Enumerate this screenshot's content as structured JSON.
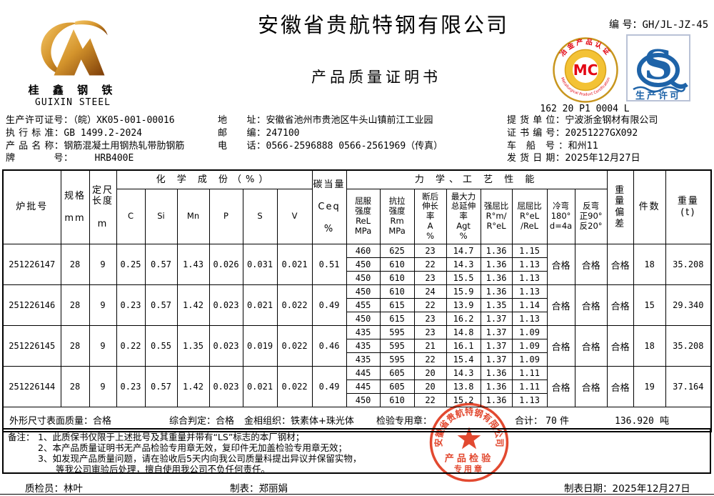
{
  "header": {
    "company": "安徽省贵航特钢有限公司",
    "doc_title": "产品质量证明书",
    "doc_no_label": "编 号：",
    "doc_no": "GH/JL-JZ-45",
    "logo_cn": "桂 鑫 钢 铁",
    "logo_en": "GUIXIN STEEL",
    "mc_letters": "MC",
    "mc_arc_top": "冶金产品认证",
    "mc_arc_bottom": "Metallurgical Product Certification",
    "mc_code": "162 20 P1 0004 L",
    "qs_letter": "S",
    "qs_caption": "生产许可"
  },
  "colors": {
    "stamp_red": "#e0391e",
    "mc_red": "#e30613",
    "mc_gold": "#d9a21a",
    "qs_blue": "#1e63a8"
  },
  "info": {
    "license_label": "生产许可证号：",
    "license_value": "（皖）XK05-001-00016",
    "standard_label": "执 行 标 准：",
    "standard_value": "GB 1499.2-2024",
    "product_label": "产 品 名 称：",
    "product_value": "钢筋混凝土用钢热轧带肋钢筋",
    "grade_label": "牌　　　　号：",
    "grade_value": "HRB400E",
    "address_label": "地　　址：",
    "address_value": "安徽省池州市贵池区牛头山镇前江工业园",
    "zip_label": "邮　　编：",
    "zip_value": "247100",
    "phone_label": "电　　话：",
    "phone_value": "0566-2596888  0566-2561969（传真）",
    "consignee_label": "提 货 单 位：",
    "consignee_value": "宁波浙金钢材有限公司",
    "certno_label": "证 书 编 号：",
    "certno_value": "20251227GX092",
    "vehicle_label": "车　船　号 ：",
    "vehicle_value": "和州11",
    "shipdate_label": "发 货 日 期：",
    "shipdate_value": "2025年12月27日"
  },
  "table": {
    "group_chem": "化 学 成 份（%）",
    "group_mech": "力 学、工 艺 性 能",
    "h_heat": "炉批号",
    "h_spec": "规格\n\nmm",
    "h_length": "定尺\n长度\n\nm",
    "chem_cols": [
      "C",
      "Si",
      "Mn",
      "P",
      "S",
      "V"
    ],
    "h_ceq": "碳当量\n\nCeq\n\n%",
    "h_rel": "屈服\n强度\nReL\nMPa",
    "h_rm": "抗拉\n强度\nRm\nMPa",
    "h_a": "断后\n伸长\n率\nA\n%",
    "h_agt": "最大力\n总延伸\n率\nAgt\n%",
    "h_ratio_rm": "强屈比\nR°m/\nR°eL",
    "h_ratio_rel": "屈屈比\nR°eL\n/ReL",
    "h_coldbend": "冷弯\n180°\nd=4a",
    "h_rebend": "反弯\n正90°\n反20°",
    "h_weightdev": "重\n量\n偏\n差",
    "h_pieces": "件数",
    "h_weight": "重量\n(t)",
    "batches": [
      {
        "heat_no": "251226147",
        "spec": "28",
        "length": "9",
        "chem": [
          "0.25",
          "0.57",
          "1.43",
          "0.026",
          "0.031",
          "0.021"
        ],
        "ceq": "0.51",
        "mech": [
          [
            "460",
            "625",
            "23",
            "14.7",
            "1.36",
            "1.15"
          ],
          [
            "450",
            "610",
            "22",
            "14.3",
            "1.36",
            "1.13"
          ],
          [
            "450",
            "610",
            "23",
            "15.5",
            "1.36",
            "1.13"
          ]
        ],
        "cold_bend": "合格",
        "rebend": "合格",
        "weight_dev": "合格",
        "pieces": "18",
        "weight": "35.208"
      },
      {
        "heat_no": "251226146",
        "spec": "28",
        "length": "9",
        "chem": [
          "0.23",
          "0.57",
          "1.42",
          "0.023",
          "0.021",
          "0.022"
        ],
        "ceq": "0.49",
        "mech": [
          [
            "450",
            "610",
            "24",
            "15.9",
            "1.36",
            "1.13"
          ],
          [
            "455",
            "615",
            "22",
            "13.9",
            "1.35",
            "1.14"
          ],
          [
            "450",
            "615",
            "23",
            "16.2",
            "1.37",
            "1.13"
          ]
        ],
        "cold_bend": "合格",
        "rebend": "合格",
        "weight_dev": "合格",
        "pieces": "15",
        "weight": "29.340"
      },
      {
        "heat_no": "251226145",
        "spec": "28",
        "length": "9",
        "chem": [
          "0.22",
          "0.55",
          "1.35",
          "0.023",
          "0.019",
          "0.022"
        ],
        "ceq": "0.46",
        "mech": [
          [
            "435",
            "595",
            "23",
            "14.8",
            "1.37",
            "1.09"
          ],
          [
            "435",
            "595",
            "21",
            "16.1",
            "1.37",
            "1.09"
          ],
          [
            "435",
            "595",
            "22",
            "15.4",
            "1.37",
            "1.09"
          ]
        ],
        "cold_bend": "合格",
        "rebend": "合格",
        "weight_dev": "合格",
        "pieces": "18",
        "weight": "35.208"
      },
      {
        "heat_no": "251226144",
        "spec": "28",
        "length": "9",
        "chem": [
          "0.23",
          "0.57",
          "1.42",
          "0.023",
          "0.021",
          "0.022"
        ],
        "ceq": "0.49",
        "mech": [
          [
            "445",
            "605",
            "20",
            "14.3",
            "1.36",
            "1.11"
          ],
          [
            "445",
            "605",
            "20",
            "13.8",
            "1.36",
            "1.11"
          ],
          [
            "450",
            "610",
            "22",
            "15.2",
            "1.36",
            "1.13"
          ]
        ],
        "cold_bend": "合格",
        "rebend": "合格",
        "weight_dev": "合格",
        "pieces": "19",
        "weight": "37.164"
      }
    ]
  },
  "summary": {
    "surface_label": "外形尺寸表面质量：",
    "surface_value": "合格",
    "judgement_label": "综合判定：",
    "judgement_value": "合格",
    "metallographic_label": "金相组织：",
    "metallographic_value": "铁素体+珠光体",
    "stamp_label": "检验专用章：",
    "total_label": "合计：",
    "total_pieces": "70",
    "pieces_unit": "件",
    "total_weight": "136.920",
    "weight_unit": "吨"
  },
  "remarks": {
    "label": "备注：",
    "lines": [
      "1、此质保书仅限于上述批号及其重量并带有“LS”标志的本厂钢材；",
      "2、本产品质量证明书无产品检验专用章无效，复印件无加盖检验专用章无效；",
      "3、如发现产品质量问题，请在验收后5天内向我公司质量科提出异议并保留实物，",
      "　　等我公司审验后处理，擅自使用我公司不负任何责任。"
    ]
  },
  "stamp": {
    "company": "安徽省贵航特钢有限公司",
    "line1": "产品检验",
    "line2": "专用章"
  },
  "signature": {
    "inspector_label": "质检员：",
    "inspector": "林叶",
    "tabulator_label": "制表：",
    "tabulator": "郑丽娟",
    "date_label": "制表日期：",
    "date": "2025年12月27日"
  }
}
